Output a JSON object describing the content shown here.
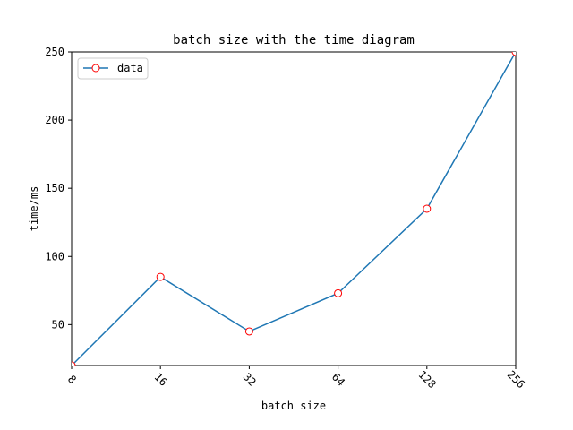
{
  "chart_data": {
    "type": "line",
    "title": "batch size with the time diagram",
    "xlabel": "batch size",
    "ylabel": "time/ms",
    "x_scale": "log2",
    "x": [
      8,
      16,
      32,
      64,
      128,
      256
    ],
    "x_tick_labels": [
      "8",
      "16",
      "32",
      "64",
      "128",
      "256"
    ],
    "y_ticks": [
      50,
      100,
      150,
      200,
      250
    ],
    "ylim": [
      20,
      250
    ],
    "grid": false,
    "legend_position": "top-left",
    "series": [
      {
        "name": "data",
        "values": [
          20,
          85,
          45,
          73,
          135,
          250
        ],
        "line_color": "#1f77b4",
        "marker": "circle",
        "marker_edge_color": "#ff0000",
        "marker_face_color": "#ffffff"
      }
    ]
  }
}
